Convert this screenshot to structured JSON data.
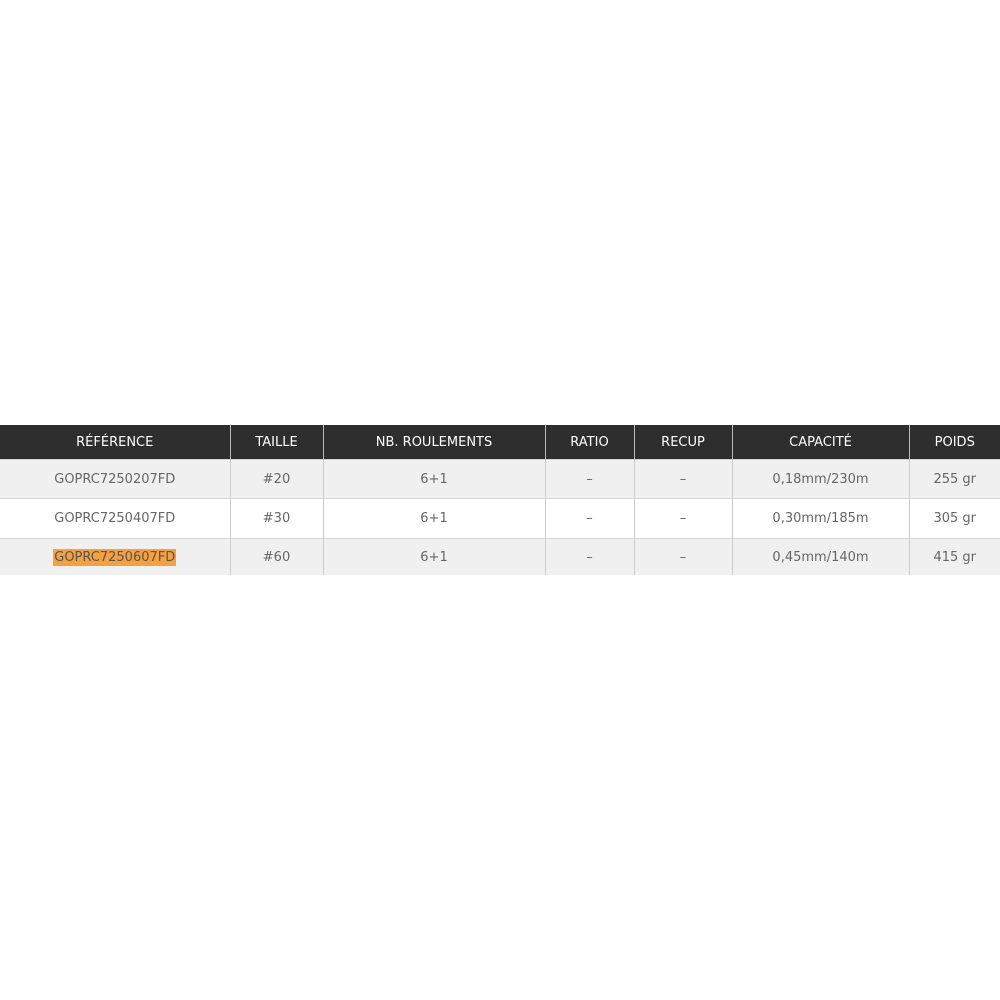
{
  "table": {
    "headers": [
      "RÉFÉRENCE",
      "TAILLE",
      "NB. ROULEMENTS",
      "RATIO",
      "RECUP",
      "CAPACITÉ",
      "POIDS"
    ],
    "rows": [
      [
        "GOPRC7250207FD",
        "#20",
        "6+1",
        "–",
        "–",
        "0,18mm/230m",
        "255 gr"
      ],
      [
        "GOPRC7250407FD",
        "#30",
        "6+1",
        "–",
        "–",
        "0,30mm/185m",
        "305 gr"
      ],
      [
        "GOPRC7250607FD",
        "#60",
        "6+1",
        "–",
        "–",
        "0,45mm/140m",
        "415 gr"
      ]
    ],
    "highlighted_row": 2,
    "highlight_color": "#f7a040",
    "header_color": "#2e2e2e"
  }
}
